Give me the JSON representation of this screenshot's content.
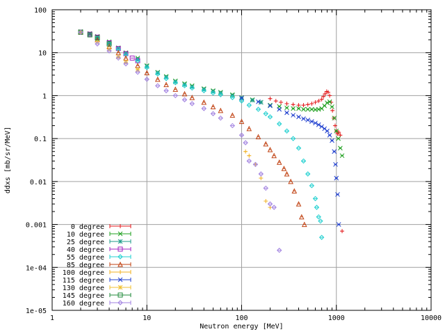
{
  "chart_data": {
    "type": "scatter",
    "title": "",
    "xlabel": "Neutron energy [MeV]",
    "ylabel": "ddxs [mb/sr/MeV]",
    "xscale": "log",
    "yscale": "log",
    "xlim": [
      1,
      10000
    ],
    "ylim": [
      1e-05,
      100
    ],
    "grid": true,
    "legend_position": "bottom-left",
    "x_ticks": [
      "1",
      "10",
      "100",
      "1000",
      "10000"
    ],
    "y_ticks": [
      "100",
      "10",
      "1",
      "0.1",
      "0.01",
      "0.001",
      "1e-04",
      "1e-05"
    ],
    "series": [
      {
        "name": "0 degree",
        "color": "#e41a1c",
        "marker": "+",
        "x": [
          200,
          230,
          260,
          300,
          350,
          400,
          450,
          500,
          550,
          600,
          650,
          700,
          730,
          760,
          790,
          820,
          850,
          880,
          910,
          940,
          970,
          1000,
          1030,
          1060,
          1100,
          1150
        ],
        "y": [
          0.85,
          0.75,
          0.7,
          0.65,
          0.62,
          0.6,
          0.6,
          0.62,
          0.65,
          0.7,
          0.75,
          0.82,
          0.95,
          1.1,
          1.25,
          1.2,
          1.0,
          0.7,
          0.45,
          0.3,
          0.2,
          0.15,
          0.13,
          0.14,
          0.12,
          0.0007
        ]
      },
      {
        "name": "10 degree",
        "color": "#1fa01f",
        "marker": "x",
        "x": [
          2,
          2.5,
          3,
          4,
          5,
          6,
          8,
          10,
          13,
          16,
          20,
          25,
          30,
          40,
          50,
          60,
          80,
          100,
          130,
          160,
          200,
          250,
          300,
          350,
          400,
          450,
          500,
          550,
          600,
          650,
          700,
          750,
          800,
          850,
          900,
          950,
          1000,
          1050,
          1100,
          1150
        ],
        "y": [
          31,
          28,
          24,
          18,
          13,
          10,
          7.5,
          5,
          3.5,
          2.8,
          2.2,
          1.9,
          1.7,
          1.45,
          1.3,
          1.2,
          1.05,
          0.9,
          0.8,
          0.7,
          0.6,
          0.56,
          0.52,
          0.5,
          0.5,
          0.48,
          0.48,
          0.48,
          0.47,
          0.48,
          0.5,
          0.58,
          0.68,
          0.72,
          0.55,
          0.3,
          0.15,
          0.1,
          0.06,
          0.04
        ]
      },
      {
        "name": "25 degree",
        "color": "#1e9b8a",
        "marker": "*",
        "x": [
          2,
          2.5,
          3,
          4,
          5,
          6,
          8,
          10,
          13,
          16,
          20,
          25,
          30,
          40,
          50,
          60,
          80,
          100,
          130,
          160
        ],
        "y": [
          30,
          27,
          23,
          17,
          12.5,
          9.5,
          7,
          4.8,
          3.4,
          2.7,
          2.1,
          1.8,
          1.6,
          1.4,
          1.25,
          1.15,
          1.0,
          0.88,
          0.78,
          0.7
        ]
      },
      {
        "name": "40 degree",
        "color": "#a020c0",
        "marker": "square",
        "x": [
          2,
          2.5,
          3,
          4,
          5,
          6,
          7,
          8
        ],
        "y": [
          30,
          27,
          23,
          17,
          12.5,
          9.5,
          7.5,
          6.5
        ]
      },
      {
        "name": "55 degree",
        "color": "#20d0d0",
        "marker": "diamond",
        "x": [
          2,
          3,
          4,
          5,
          6,
          8,
          10,
          13,
          16,
          20,
          25,
          30,
          40,
          50,
          60,
          80,
          100,
          120,
          150,
          180,
          200,
          250,
          300,
          350,
          400,
          450,
          500,
          550,
          600,
          620,
          650,
          680,
          700
        ],
        "y": [
          30,
          22,
          16,
          12,
          9,
          6.5,
          4.5,
          3.2,
          2.5,
          2.0,
          1.7,
          1.5,
          1.3,
          1.15,
          1.05,
          0.9,
          0.75,
          0.6,
          0.48,
          0.38,
          0.32,
          0.22,
          0.15,
          0.1,
          0.06,
          0.03,
          0.015,
          0.008,
          0.004,
          0.0025,
          0.0015,
          0.0012,
          0.0005
        ]
      },
      {
        "name": "85 degree",
        "color": "#c04010",
        "marker": "triangle",
        "x": [
          2,
          3,
          4,
          5,
          6,
          8,
          10,
          13,
          16,
          20,
          25,
          30,
          40,
          50,
          60,
          80,
          100,
          120,
          150,
          180,
          200,
          220,
          250,
          280,
          300,
          330,
          360,
          400,
          430,
          460
        ],
        "y": [
          30,
          20,
          14,
          10,
          7.5,
          5,
          3.4,
          2.4,
          1.8,
          1.4,
          1.1,
          0.9,
          0.7,
          0.55,
          0.45,
          0.35,
          0.25,
          0.17,
          0.11,
          0.075,
          0.055,
          0.04,
          0.028,
          0.02,
          0.015,
          0.01,
          0.006,
          0.003,
          0.0015,
          0.001
        ]
      },
      {
        "name": "100 degree",
        "color": "#f0b020",
        "marker": "+",
        "x": [
          110,
          120,
          140,
          160,
          180,
          200
        ],
        "y": [
          0.05,
          0.04,
          0.025,
          0.012,
          0.0035,
          0.0025
        ]
      },
      {
        "name": "115 degree",
        "color": "#1f3fcf",
        "marker": "x",
        "x": [
          100,
          150,
          200,
          250,
          300,
          350,
          400,
          450,
          500,
          550,
          600,
          650,
          700,
          750,
          800,
          850,
          900,
          950,
          980,
          1000,
          1030,
          1060
        ],
        "y": [
          0.88,
          0.72,
          0.58,
          0.48,
          0.4,
          0.35,
          0.32,
          0.29,
          0.27,
          0.25,
          0.23,
          0.21,
          0.19,
          0.17,
          0.15,
          0.12,
          0.09,
          0.05,
          0.025,
          0.012,
          0.005,
          0.001
        ]
      },
      {
        "name": "130 degree",
        "color": "#f0c030",
        "marker": "*",
        "x": [
          2,
          3,
          4,
          5,
          6,
          8
        ],
        "y": [
          30,
          18,
          12,
          8,
          6,
          4
        ]
      },
      {
        "name": "145 degree",
        "color": "#1f8a3a",
        "marker": "square",
        "x": [
          2,
          2.5,
          3,
          4
        ],
        "y": [
          30,
          26,
          22,
          16
        ]
      },
      {
        "name": "160 degree",
        "color": "#a080e0",
        "marker": "diamond",
        "x": [
          2,
          3,
          4,
          5,
          6,
          8,
          10,
          13,
          16,
          20,
          25,
          30,
          40,
          50,
          60,
          80,
          100,
          110,
          120,
          140,
          160,
          180,
          200,
          220,
          250
        ],
        "y": [
          30,
          16,
          11,
          7.5,
          5.5,
          3.5,
          2.4,
          1.7,
          1.3,
          1.0,
          0.8,
          0.65,
          0.5,
          0.38,
          0.3,
          0.2,
          0.12,
          0.08,
          0.03,
          0.025,
          0.015,
          0.007,
          0.003,
          0.0025,
          0.00025
        ]
      }
    ]
  }
}
